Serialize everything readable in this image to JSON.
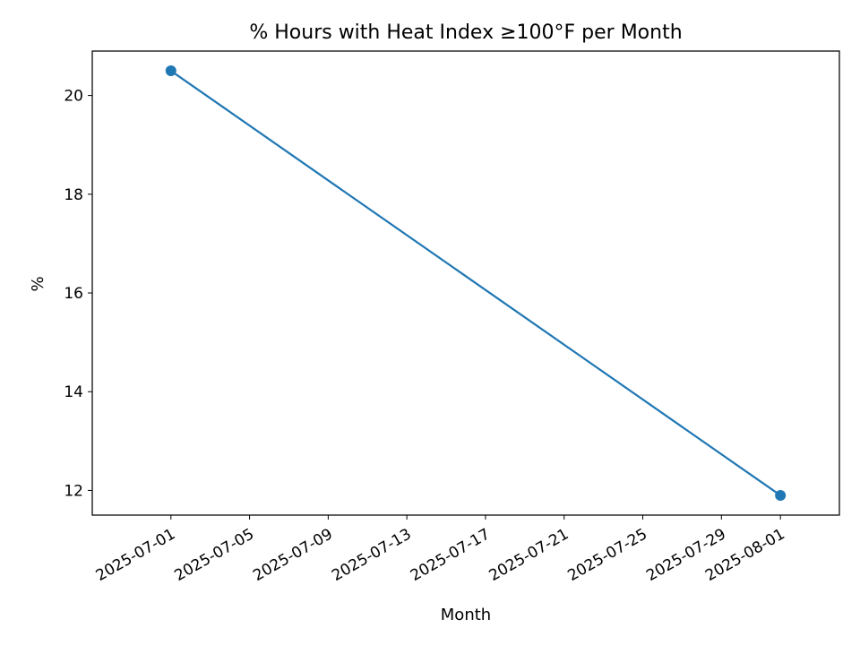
{
  "chart_data": {
    "type": "line",
    "title": "% Hours with Heat Index ≥100°F per Month",
    "xlabel": "Month",
    "ylabel": "%",
    "x_type": "date",
    "x_tick_labels": [
      "2025-07-01",
      "2025-07-05",
      "2025-07-09",
      "2025-07-13",
      "2025-07-17",
      "2025-07-21",
      "2025-07-25",
      "2025-07-29",
      "2025-08-01"
    ],
    "y_ticks": [
      12,
      14,
      16,
      18,
      20
    ],
    "y_tick_labels": [
      "12",
      "14",
      "16",
      "18",
      "20"
    ],
    "xlim": [
      "2025-06-27",
      "2025-08-04"
    ],
    "ylim": [
      11.5,
      20.9
    ],
    "grid": false,
    "legend": false,
    "series": [
      {
        "color": "#1f77b4",
        "marker": "circle",
        "x": [
          "2025-07-01",
          "2025-08-01"
        ],
        "y": [
          20.5,
          11.9
        ]
      }
    ]
  }
}
